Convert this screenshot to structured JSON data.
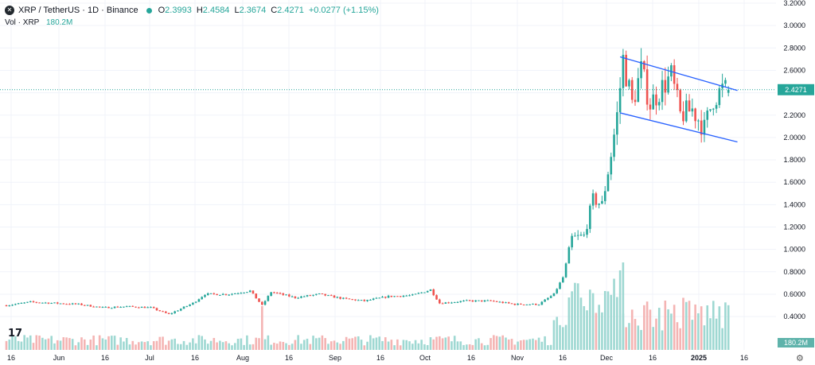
{
  "header": {
    "symbol_title": "XRP / TetherUS · 1D · Binance",
    "open_label": "O",
    "open": "2.3993",
    "high_label": "H",
    "high": "2.4584",
    "low_label": "L",
    "low": "2.3674",
    "close_label": "C",
    "close": "2.4271",
    "change": "+0.0277 (+1.15%)"
  },
  "volume": {
    "label": "Vol · XRP",
    "value": "180.2M"
  },
  "colors": {
    "up": "#26a69a",
    "down": "#ef5350",
    "up_vol": "#9ed8d2",
    "down_vol": "#f4b4b3",
    "channel": "#2962ff",
    "grid": "#f0f3fa",
    "last_price_line": "#26a69a"
  },
  "chart_data": {
    "type": "candlestick",
    "title": "XRP / TetherUS · 1D · Binance",
    "x_tick_labels": [
      "16",
      "Jun",
      "16",
      "Jul",
      "16",
      "Aug",
      "16",
      "Sep",
      "16",
      "Oct",
      "16",
      "Nov",
      "16",
      "Dec",
      "16",
      "2025",
      "16"
    ],
    "y_tick_labels": [
      "3.2000",
      "3.0000",
      "2.8000",
      "2.6000",
      "2.4000",
      "2.2000",
      "2.0000",
      "1.8000",
      "1.6000",
      "1.4000",
      "1.2000",
      "1.0000",
      "0.8000",
      "0.6000",
      "0.4000"
    ],
    "ylim": [
      0.28,
      3.2
    ],
    "last_price": "2.4271",
    "last_volume": "180.2M",
    "grid": true,
    "price_series": [
      {
        "date": "2024-05-12",
        "close": 0.5
      },
      {
        "date": "2024-05-20",
        "close": 0.53
      },
      {
        "date": "2024-05-28",
        "close": 0.52
      },
      {
        "date": "2024-06-05",
        "close": 0.51
      },
      {
        "date": "2024-06-13",
        "close": 0.48
      },
      {
        "date": "2024-06-21",
        "close": 0.49
      },
      {
        "date": "2024-06-29",
        "close": 0.48
      },
      {
        "date": "2024-07-05",
        "close": 0.42
      },
      {
        "date": "2024-07-13",
        "close": 0.52
      },
      {
        "date": "2024-07-17",
        "close": 0.6
      },
      {
        "date": "2024-07-25",
        "close": 0.6
      },
      {
        "date": "2024-08-01",
        "close": 0.63
      },
      {
        "date": "2024-08-05",
        "close": 0.5
      },
      {
        "date": "2024-08-08",
        "close": 0.62
      },
      {
        "date": "2024-08-16",
        "close": 0.57
      },
      {
        "date": "2024-08-24",
        "close": 0.6
      },
      {
        "date": "2024-09-01",
        "close": 0.56
      },
      {
        "date": "2024-09-08",
        "close": 0.54
      },
      {
        "date": "2024-09-16",
        "close": 0.58
      },
      {
        "date": "2024-09-24",
        "close": 0.59
      },
      {
        "date": "2024-09-30",
        "close": 0.64
      },
      {
        "date": "2024-10-03",
        "close": 0.52
      },
      {
        "date": "2024-10-12",
        "close": 0.54
      },
      {
        "date": "2024-10-20",
        "close": 0.54
      },
      {
        "date": "2024-10-28",
        "close": 0.51
      },
      {
        "date": "2024-11-05",
        "close": 0.51
      },
      {
        "date": "2024-11-10",
        "close": 0.6
      },
      {
        "date": "2024-11-13",
        "close": 0.75
      },
      {
        "date": "2024-11-16",
        "close": 1.1
      },
      {
        "date": "2024-11-20",
        "close": 1.12
      },
      {
        "date": "2024-11-23",
        "close": 1.45
      },
      {
        "date": "2024-11-26",
        "close": 1.4
      },
      {
        "date": "2024-11-29",
        "close": 1.85
      },
      {
        "date": "2024-12-01",
        "close": 2.2
      },
      {
        "date": "2024-12-03",
        "close": 2.7
      },
      {
        "date": "2024-12-06",
        "close": 2.3
      },
      {
        "date": "2024-12-09",
        "close": 2.6
      },
      {
        "date": "2024-12-12",
        "close": 2.3
      },
      {
        "date": "2024-12-16",
        "close": 2.45
      },
      {
        "date": "2024-12-19",
        "close": 2.55
      },
      {
        "date": "2024-12-22",
        "close": 2.2
      },
      {
        "date": "2024-12-26",
        "close": 2.25
      },
      {
        "date": "2024-12-30",
        "close": 2.08
      },
      {
        "date": "2025-01-02",
        "close": 2.35
      },
      {
        "date": "2025-01-05",
        "close": 2.43
      },
      {
        "date": "2025-01-07",
        "close": 2.4271
      }
    ],
    "volume_series": [
      {
        "date": "2024-08-05",
        "volume": "spike"
      },
      {
        "date": "2024-12-03",
        "volume": "max"
      }
    ],
    "channel_upper": [
      {
        "date": "2024-12-02",
        "price": 2.72
      },
      {
        "date": "2025-01-10",
        "price": 2.42
      }
    ],
    "channel_lower": [
      {
        "date": "2024-12-02",
        "price": 2.22
      },
      {
        "date": "2025-01-10",
        "price": 1.96
      }
    ]
  }
}
